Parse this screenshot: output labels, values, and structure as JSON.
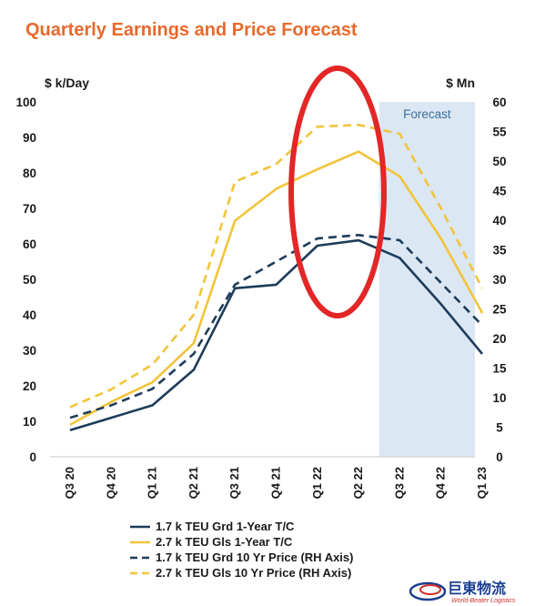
{
  "chart_data": {
    "type": "line",
    "title": "Quarterly Earnings and Price Forecast",
    "ylabel_left": "$ k/Day",
    "ylabel_right": "$ Mn",
    "ylim_left": [
      0,
      100
    ],
    "ylim_right": [
      0,
      60
    ],
    "yticks_left": [
      "0",
      "10",
      "20",
      "30",
      "40",
      "50",
      "60",
      "70",
      "80",
      "90",
      "100"
    ],
    "yticks_right": [
      "0",
      "5",
      "10",
      "15",
      "20",
      "25",
      "30",
      "35",
      "40",
      "45",
      "50",
      "55",
      "60"
    ],
    "categories": [
      "Q3 20",
      "Q4 20",
      "Q1 21",
      "Q2 21",
      "Q3 21",
      "Q4 21",
      "Q1 22",
      "Q2 22",
      "Q3 22",
      "Q4 22",
      "Q1 23"
    ],
    "forecast_label": "Forecast",
    "forecast_start": "Q3 22",
    "grid": false,
    "legend_position": "bottom",
    "series": [
      {
        "name": "1.7 k TEU Grd 1-Year T/C",
        "axis": "left",
        "style": "solid",
        "color": "#1d3c5a",
        "values": [
          7.5,
          11,
          14.5,
          24.5,
          47.5,
          48.5,
          59.5,
          61,
          56,
          43,
          29
        ]
      },
      {
        "name": "2.7 k TEU Gls 1-Year T/C",
        "axis": "left",
        "style": "solid",
        "color": "#f2c43a",
        "values": [
          9,
          15.5,
          21,
          32,
          66.5,
          75.5,
          81,
          86,
          79,
          61.5,
          40.5
        ]
      },
      {
        "name": "1.7 k TEU Grd 10 Yr Price (RH Axis)",
        "axis": "right",
        "style": "dashed",
        "color": "#1d3c5a",
        "values": [
          6.6,
          8.7,
          11.5,
          17.4,
          29.1,
          33,
          36.9,
          37.5,
          36.6,
          29.4,
          22.2
        ]
      },
      {
        "name": "2.7 k TEU Gls 10 Yr Price (RH Axis)",
        "axis": "right",
        "style": "dashed",
        "color": "#f2c43a",
        "values": [
          8.4,
          11.4,
          15.6,
          24,
          46.5,
          49.5,
          55.8,
          56.1,
          54.6,
          42,
          28.5
        ]
      }
    ],
    "annotation": {
      "shape": "ellipse",
      "color": "#e32626",
      "covers": [
        "Q1 22",
        "Q2 22"
      ]
    }
  },
  "logo": {
    "name_cn": "巨東物流",
    "name_en": "World-Beater Logistics"
  }
}
